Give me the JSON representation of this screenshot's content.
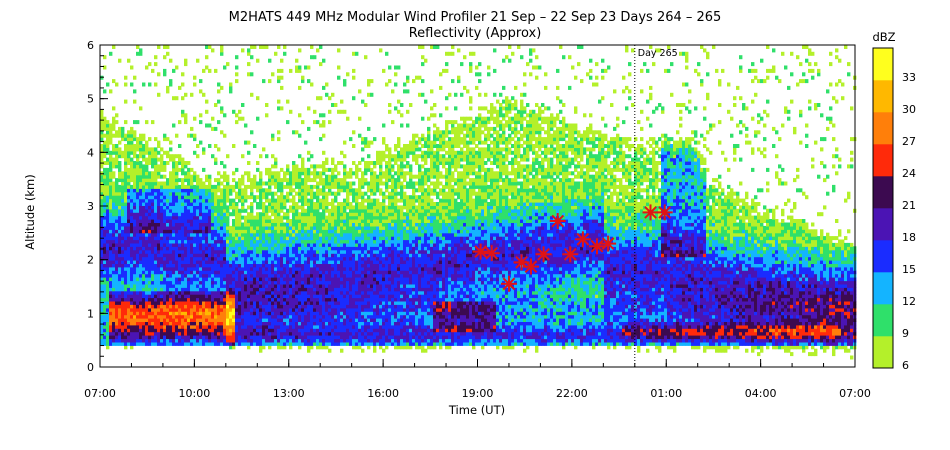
{
  "chart_data": {
    "type": "heatmap",
    "title": "M2HATS 449 MHz Modular Wind Profiler  21 Sep – 22 Sep 23 Days 264 – 265",
    "subtitle": "Reflectivity (Approx)",
    "xlabel": "Time (UT)",
    "ylabel": "Altitude (km)",
    "x_ticks": [
      "07:00",
      "10:00",
      "13:00",
      "16:00",
      "19:00",
      "22:00",
      "01:00",
      "04:00",
      "07:00"
    ],
    "x_range_hours": [
      0,
      24
    ],
    "y_ticks": [
      "0",
      "1",
      "2",
      "3",
      "4",
      "5",
      "6"
    ],
    "ylim": [
      0,
      6
    ],
    "day_marker": {
      "label": "Day 265",
      "hour": 17
    },
    "colorbar": {
      "unit": "dBZ",
      "ticks": [
        "6",
        "9",
        "12",
        "15",
        "18",
        "21",
        "24",
        "27",
        "30",
        "33"
      ],
      "levels": [
        6,
        9,
        12,
        15,
        18,
        21,
        24,
        27,
        30,
        33,
        36
      ],
      "colors": [
        "#b4f02a",
        "#2fe06a",
        "#14b4ff",
        "#1a2cff",
        "#4b14b4",
        "#3c0a50",
        "#ff2a0a",
        "#ff7f0a",
        "#ffb800",
        "#ffff1e"
      ]
    },
    "markers": {
      "symbol": "star",
      "color": "#e11414",
      "points": [
        {
          "x": 12.1,
          "y": 2.15
        },
        {
          "x": 12.45,
          "y": 2.12
        },
        {
          "x": 13.0,
          "y": 1.55
        },
        {
          "x": 13.4,
          "y": 1.95
        },
        {
          "x": 13.7,
          "y": 1.87
        },
        {
          "x": 14.1,
          "y": 2.1
        },
        {
          "x": 14.55,
          "y": 2.72
        },
        {
          "x": 14.95,
          "y": 2.1
        },
        {
          "x": 15.35,
          "y": 2.38
        },
        {
          "x": 15.8,
          "y": 2.25
        },
        {
          "x": 16.15,
          "y": 2.3
        },
        {
          "x": 17.5,
          "y": 2.88
        },
        {
          "x": 17.95,
          "y": 2.88
        }
      ]
    }
  }
}
